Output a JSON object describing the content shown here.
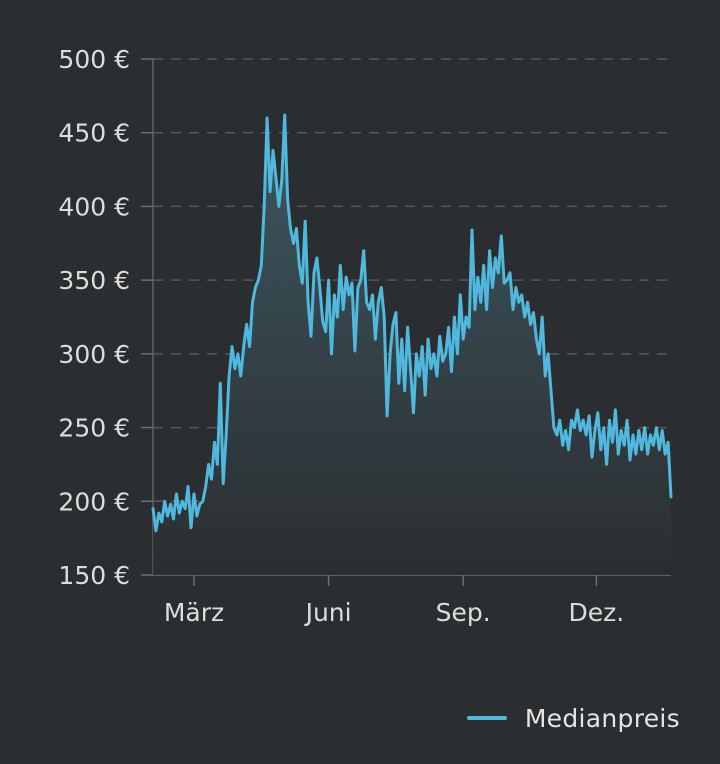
{
  "chart_data": {
    "type": "area",
    "x_ticks": [
      "März",
      "Juni",
      "Sep.",
      "Dez."
    ],
    "y_ticks": [
      150,
      200,
      250,
      300,
      350,
      400,
      450,
      500
    ],
    "y_tick_labels": [
      "150 €",
      "200 €",
      "250 €",
      "300 €",
      "350 €",
      "400 €",
      "450 €",
      "500 €"
    ],
    "ylim": [
      150,
      500
    ],
    "grid": true,
    "legend_position": "bottom-right",
    "line_color": "#4fb8dc",
    "series": [
      {
        "name": "Medianpreis",
        "points": [
          [
            "2023-02-01",
            195
          ],
          [
            "2023-02-03",
            180
          ],
          [
            "2023-02-05",
            192
          ],
          [
            "2023-02-07",
            186
          ],
          [
            "2023-02-09",
            200
          ],
          [
            "2023-02-11",
            190
          ],
          [
            "2023-02-13",
            198
          ],
          [
            "2023-02-15",
            188
          ],
          [
            "2023-02-17",
            205
          ],
          [
            "2023-02-19",
            192
          ],
          [
            "2023-02-21",
            200
          ],
          [
            "2023-02-23",
            195
          ],
          [
            "2023-02-25",
            210
          ],
          [
            "2023-02-27",
            182
          ],
          [
            "2023-03-01",
            205
          ],
          [
            "2023-03-03",
            190
          ],
          [
            "2023-03-05",
            198
          ],
          [
            "2023-03-07",
            200
          ],
          [
            "2023-03-09",
            210
          ],
          [
            "2023-03-11",
            225
          ],
          [
            "2023-03-13",
            215
          ],
          [
            "2023-03-15",
            240
          ],
          [
            "2023-03-17",
            225
          ],
          [
            "2023-03-19",
            280
          ],
          [
            "2023-03-21",
            212
          ],
          [
            "2023-03-23",
            245
          ],
          [
            "2023-03-25",
            285
          ],
          [
            "2023-03-27",
            305
          ],
          [
            "2023-03-29",
            290
          ],
          [
            "2023-03-31",
            300
          ],
          [
            "2023-04-02",
            285
          ],
          [
            "2023-04-04",
            305
          ],
          [
            "2023-04-06",
            320
          ],
          [
            "2023-04-08",
            305
          ],
          [
            "2023-04-10",
            335
          ],
          [
            "2023-04-12",
            345
          ],
          [
            "2023-04-14",
            350
          ],
          [
            "2023-04-16",
            360
          ],
          [
            "2023-04-18",
            400
          ],
          [
            "2023-04-20",
            460
          ],
          [
            "2023-04-22",
            410
          ],
          [
            "2023-04-24",
            438
          ],
          [
            "2023-04-26",
            420
          ],
          [
            "2023-04-28",
            400
          ],
          [
            "2023-04-30",
            418
          ],
          [
            "2023-05-02",
            462
          ],
          [
            "2023-05-04",
            405
          ],
          [
            "2023-05-06",
            385
          ],
          [
            "2023-05-08",
            375
          ],
          [
            "2023-05-10",
            385
          ],
          [
            "2023-05-12",
            360
          ],
          [
            "2023-05-14",
            348
          ],
          [
            "2023-05-16",
            390
          ],
          [
            "2023-05-18",
            335
          ],
          [
            "2023-05-20",
            312
          ],
          [
            "2023-05-22",
            355
          ],
          [
            "2023-05-24",
            365
          ],
          [
            "2023-05-26",
            345
          ],
          [
            "2023-05-28",
            322
          ],
          [
            "2023-05-30",
            315
          ],
          [
            "2023-06-01",
            350
          ],
          [
            "2023-06-03",
            300
          ],
          [
            "2023-06-05",
            340
          ],
          [
            "2023-06-07",
            325
          ],
          [
            "2023-06-09",
            360
          ],
          [
            "2023-06-11",
            330
          ],
          [
            "2023-06-13",
            352
          ],
          [
            "2023-06-15",
            340
          ],
          [
            "2023-06-17",
            348
          ],
          [
            "2023-06-19",
            302
          ],
          [
            "2023-06-21",
            345
          ],
          [
            "2023-06-23",
            350
          ],
          [
            "2023-06-25",
            370
          ],
          [
            "2023-06-27",
            335
          ],
          [
            "2023-06-29",
            330
          ],
          [
            "2023-07-01",
            340
          ],
          [
            "2023-07-03",
            310
          ],
          [
            "2023-07-05",
            335
          ],
          [
            "2023-07-07",
            345
          ],
          [
            "2023-07-09",
            325
          ],
          [
            "2023-07-11",
            258
          ],
          [
            "2023-07-13",
            300
          ],
          [
            "2023-07-15",
            320
          ],
          [
            "2023-07-17",
            328
          ],
          [
            "2023-07-19",
            280
          ],
          [
            "2023-07-21",
            310
          ],
          [
            "2023-07-23",
            275
          ],
          [
            "2023-07-25",
            318
          ],
          [
            "2023-07-27",
            290
          ],
          [
            "2023-07-29",
            260
          ],
          [
            "2023-07-31",
            300
          ],
          [
            "2023-08-02",
            285
          ],
          [
            "2023-08-04",
            305
          ],
          [
            "2023-08-06",
            272
          ],
          [
            "2023-08-08",
            310
          ],
          [
            "2023-08-10",
            290
          ],
          [
            "2023-08-12",
            300
          ],
          [
            "2023-08-14",
            285
          ],
          [
            "2023-08-16",
            312
          ],
          [
            "2023-08-18",
            295
          ],
          [
            "2023-08-20",
            300
          ],
          [
            "2023-08-22",
            318
          ],
          [
            "2023-08-24",
            288
          ],
          [
            "2023-08-26",
            325
          ],
          [
            "2023-08-28",
            300
          ],
          [
            "2023-08-30",
            340
          ],
          [
            "2023-09-01",
            310
          ],
          [
            "2023-09-03",
            325
          ],
          [
            "2023-09-05",
            318
          ],
          [
            "2023-09-07",
            384
          ],
          [
            "2023-09-09",
            330
          ],
          [
            "2023-09-11",
            352
          ],
          [
            "2023-09-13",
            335
          ],
          [
            "2023-09-15",
            360
          ],
          [
            "2023-09-17",
            330
          ],
          [
            "2023-09-19",
            370
          ],
          [
            "2023-09-21",
            345
          ],
          [
            "2023-09-23",
            365
          ],
          [
            "2023-09-25",
            355
          ],
          [
            "2023-09-27",
            380
          ],
          [
            "2023-09-29",
            348
          ],
          [
            "2023-10-01",
            350
          ],
          [
            "2023-10-03",
            355
          ],
          [
            "2023-10-05",
            330
          ],
          [
            "2023-10-07",
            345
          ],
          [
            "2023-10-09",
            335
          ],
          [
            "2023-10-11",
            340
          ],
          [
            "2023-10-13",
            325
          ],
          [
            "2023-10-15",
            335
          ],
          [
            "2023-10-17",
            320
          ],
          [
            "2023-10-19",
            328
          ],
          [
            "2023-10-21",
            310
          ],
          [
            "2023-10-23",
            300
          ],
          [
            "2023-10-25",
            325
          ],
          [
            "2023-10-27",
            285
          ],
          [
            "2023-10-29",
            300
          ],
          [
            "2023-10-31",
            275
          ],
          [
            "2023-11-02",
            250
          ],
          [
            "2023-11-04",
            245
          ],
          [
            "2023-11-06",
            255
          ],
          [
            "2023-11-08",
            238
          ],
          [
            "2023-11-10",
            248
          ],
          [
            "2023-11-12",
            235
          ],
          [
            "2023-11-14",
            255
          ],
          [
            "2023-11-16",
            250
          ],
          [
            "2023-11-18",
            262
          ],
          [
            "2023-11-20",
            248
          ],
          [
            "2023-11-22",
            255
          ],
          [
            "2023-11-24",
            245
          ],
          [
            "2023-11-26",
            258
          ],
          [
            "2023-11-28",
            230
          ],
          [
            "2023-11-30",
            248
          ],
          [
            "2023-12-02",
            260
          ],
          [
            "2023-12-04",
            235
          ],
          [
            "2023-12-06",
            250
          ],
          [
            "2023-12-08",
            225
          ],
          [
            "2023-12-10",
            255
          ],
          [
            "2023-12-12",
            240
          ],
          [
            "2023-12-14",
            262
          ],
          [
            "2023-12-16",
            232
          ],
          [
            "2023-12-18",
            248
          ],
          [
            "2023-12-20",
            238
          ],
          [
            "2023-12-22",
            255
          ],
          [
            "2023-12-24",
            228
          ],
          [
            "2023-12-26",
            245
          ],
          [
            "2023-12-28",
            232
          ],
          [
            "2023-12-30",
            248
          ],
          [
            "2024-01-01",
            235
          ],
          [
            "2024-01-03",
            250
          ],
          [
            "2024-01-05",
            232
          ],
          [
            "2024-01-07",
            245
          ],
          [
            "2024-01-09",
            238
          ],
          [
            "2024-01-11",
            250
          ],
          [
            "2024-01-13",
            235
          ],
          [
            "2024-01-15",
            248
          ],
          [
            "2024-01-17",
            232
          ],
          [
            "2024-01-19",
            240
          ],
          [
            "2024-01-21",
            203
          ]
        ]
      }
    ]
  }
}
